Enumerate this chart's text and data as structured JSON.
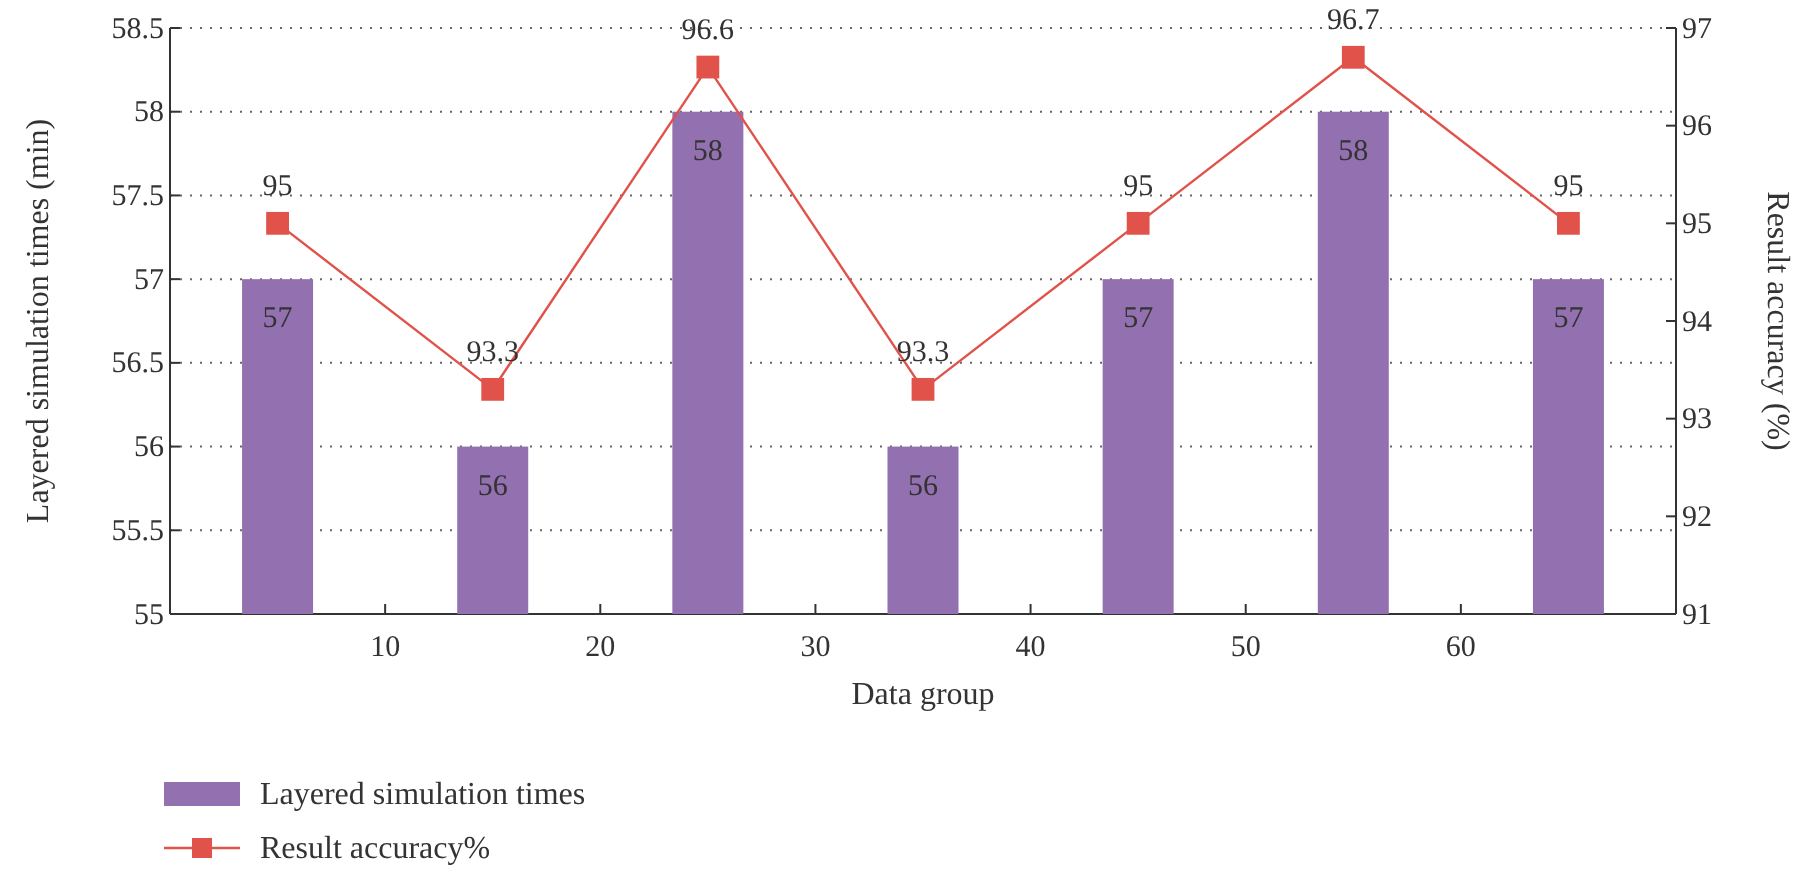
{
  "chart_data": {
    "type": "bar",
    "xlabel": "Data group",
    "ylabel": "Layered simulation times (min)",
    "y2label": "Result accuracy (%)",
    "x": [
      5,
      15,
      25,
      35,
      45,
      55,
      65
    ],
    "series": [
      {
        "name": "Layered simulation times",
        "color": "#9370b0",
        "values": [
          57,
          56,
          58,
          56,
          57,
          58,
          57
        ]
      },
      {
        "name": "Result accuracy%",
        "type": "line",
        "axis": "y2",
        "color": "#e0524a",
        "marker": "square",
        "values": [
          95,
          93.3,
          96.6,
          93.3,
          95,
          96.7,
          95
        ]
      }
    ],
    "xlim": [
      0,
      70
    ],
    "xticks": [
      10,
      20,
      30,
      40,
      50,
      60
    ],
    "ylim": [
      55,
      58.5
    ],
    "yticks": [
      55,
      55.5,
      56,
      56.5,
      57,
      57.5,
      58,
      58.5
    ],
    "y2lim": [
      91,
      97
    ],
    "y2ticks": [
      91,
      92,
      93,
      94,
      95,
      96,
      97
    ],
    "grid": "y",
    "data_labels": true,
    "legend": "bottom left"
  }
}
